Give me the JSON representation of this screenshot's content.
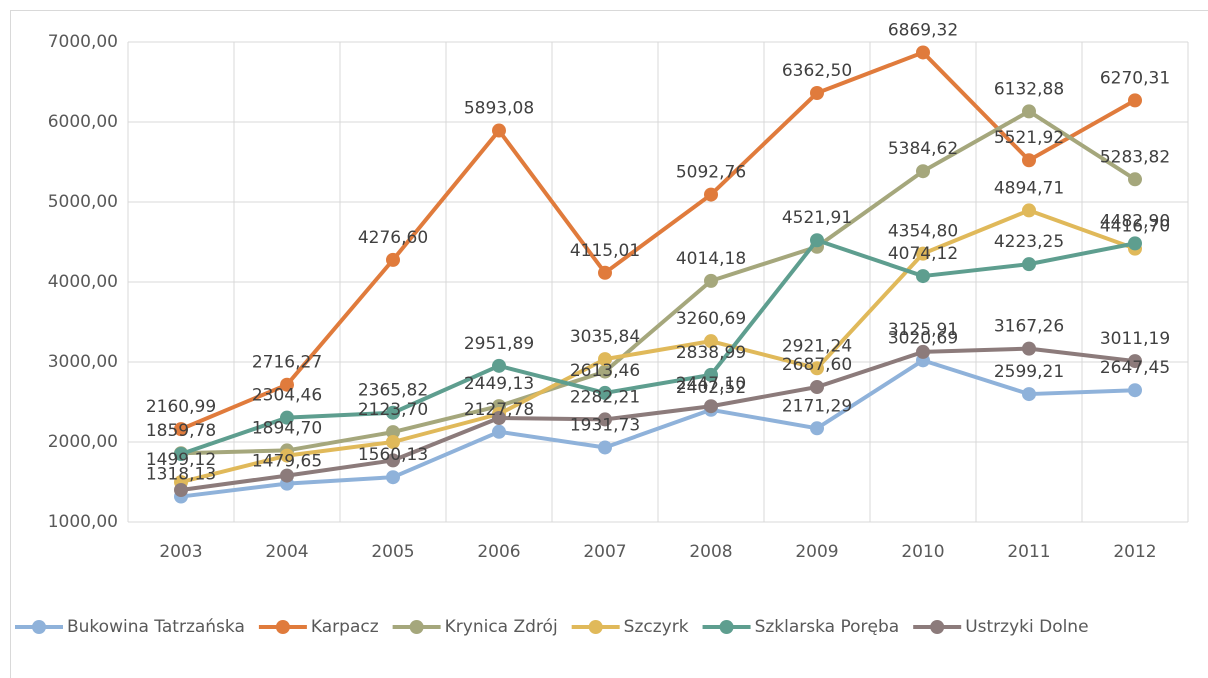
{
  "chart_data": {
    "type": "line",
    "categories": [
      "2003",
      "2004",
      "2005",
      "2006",
      "2007",
      "2008",
      "2009",
      "2010",
      "2011",
      "2012"
    ],
    "ylim": [
      1000,
      7000
    ],
    "yticks": [
      {
        "value": 1000,
        "label": "1000,00"
      },
      {
        "value": 2000,
        "label": "2000,00"
      },
      {
        "value": 3000,
        "label": "3000,00"
      },
      {
        "value": 4000,
        "label": "4000,00"
      },
      {
        "value": 5000,
        "label": "5000,00"
      },
      {
        "value": 6000,
        "label": "6000,00"
      },
      {
        "value": 7000,
        "label": "7000,00"
      }
    ],
    "grid": true,
    "legend": "bottom",
    "series": [
      {
        "name": "Bukowina Tatrzańska",
        "color": "#8fb2da",
        "values": [
          1318.13,
          1479.65,
          1560.13,
          2127.78,
          1931.73,
          2402.52,
          2171.29,
          3020.69,
          2599.21,
          2647.45
        ],
        "value_labels": [
          "1318,13",
          "1479,65",
          "1560,13",
          "2127,78",
          "1931,73",
          "2402,52",
          "2171,29",
          "3020,69",
          "2599,21",
          "2647,45"
        ]
      },
      {
        "name": "Karpacz",
        "color": "#e07b3c",
        "values": [
          2160.99,
          2716.27,
          4276.6,
          5893.08,
          4115.01,
          5092.76,
          6362.5,
          6869.32,
          5521.92,
          6270.31
        ],
        "value_labels": [
          "2160,99",
          "2716,27",
          "4276,60",
          "5893,08",
          "4115,01",
          "5092,76",
          "6362,50",
          "6869,32",
          "5521,92",
          "6270,31"
        ]
      },
      {
        "name": "Krynica Zdrój",
        "color": "#a5a77c",
        "values": [
          1859.78,
          1894.7,
          2123.7,
          2449.13,
          2880,
          4014.18,
          4440,
          5384.62,
          6132.88,
          5283.82
        ],
        "value_labels": [
          "1859,78",
          "1894,70",
          "2123,70",
          "2449,13",
          null,
          "4014,18",
          null,
          "5384,62",
          "6132,88",
          "5283,82"
        ]
      },
      {
        "name": "Szczyrk",
        "color": "#e0b95a",
        "values": [
          1499.12,
          1830,
          2000,
          2350,
          3035.84,
          3260.69,
          2921.24,
          4354.8,
          4894.71,
          4416.7
        ],
        "value_labels": [
          "1499,12",
          null,
          null,
          null,
          "3035,84",
          "3260,69",
          "2921,24",
          "4354,80",
          "4894,71",
          "4416,70"
        ]
      },
      {
        "name": "Szklarska Poręba",
        "color": "#5e9e8f",
        "values": [
          1850,
          2304.46,
          2365.82,
          2951.89,
          2613.46,
          2838.99,
          4521.91,
          4074.12,
          4223.25,
          4482.9
        ],
        "value_labels": [
          null,
          "2304,46",
          "2365,82",
          "2951,89",
          "2613,46",
          "2838,99",
          "4521,91",
          "4074,12",
          "4223,25",
          "4482,90"
        ]
      },
      {
        "name": "Ustrzyki Dolne",
        "color": "#8c7b7b",
        "values": [
          1400,
          1580,
          1770,
          2300,
          2282.21,
          2447.1,
          2687.6,
          3125.91,
          3167.26,
          3011.19
        ],
        "value_labels": [
          null,
          null,
          null,
          null,
          "2282,21",
          "2447,10",
          "2687,60",
          "3125,91",
          "3167,26",
          "3011,19"
        ]
      }
    ]
  }
}
